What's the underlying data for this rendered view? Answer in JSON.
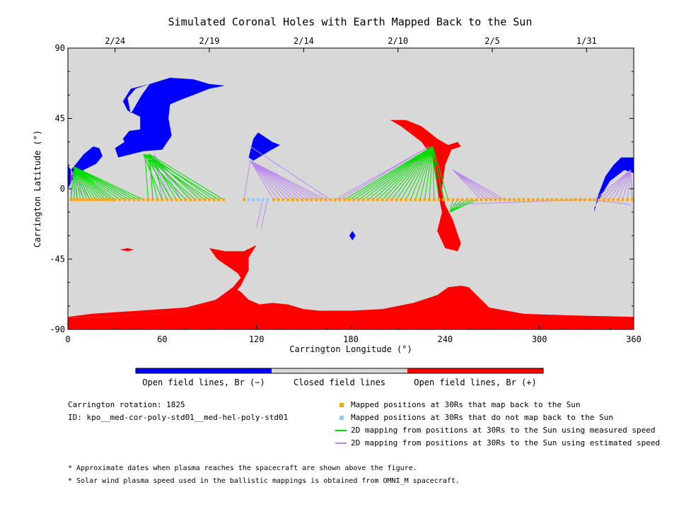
{
  "chart_data": {
    "type": "scatter",
    "title": "Simulated Coronal Holes with Earth Mapped Back to the Sun",
    "xlabel": "Carrington Longitude (°)",
    "ylabel": "Carrington Latitude (°)",
    "xlim": [
      0,
      360
    ],
    "ylim": [
      -90,
      90
    ],
    "xticks": [
      0,
      60,
      120,
      180,
      240,
      300,
      360
    ],
    "yticks": [
      -90,
      -45,
      0,
      45,
      90
    ],
    "top_axis": {
      "labels": [
        "2/24",
        "2/19",
        "2/14",
        "2/10",
        "2/5",
        "1/31"
      ],
      "longitudes": [
        30,
        90,
        150,
        210,
        270,
        330
      ]
    },
    "grid": false,
    "colors": {
      "open_negative": "#0000ff",
      "closed": "#d8d8d8",
      "open_positive": "#ff0000",
      "mapped": "#ffa500",
      "unmapped": "#87cefa",
      "measured": "#00dd00",
      "estimated": "#bb88ee"
    },
    "regions": [
      {
        "polarity": "negative",
        "points": [
          [
            40,
            48
          ],
          [
            47,
            60
          ],
          [
            52,
            67
          ],
          [
            65,
            71
          ],
          [
            80,
            70
          ],
          [
            90,
            67
          ],
          [
            100,
            66
          ],
          [
            90,
            64
          ],
          [
            80,
            60
          ],
          [
            72,
            57
          ],
          [
            65,
            54
          ],
          [
            64,
            45
          ],
          [
            66,
            34
          ],
          [
            60,
            25
          ],
          [
            48,
            24
          ],
          [
            32,
            20
          ],
          [
            30,
            26
          ],
          [
            36,
            30
          ],
          [
            35,
            32
          ],
          [
            39,
            37
          ],
          [
            46,
            38
          ],
          [
            46,
            46
          ],
          [
            38,
            50
          ],
          [
            35,
            56
          ],
          [
            40,
            64
          ],
          [
            52,
            67
          ],
          [
            43,
            64
          ],
          [
            38,
            58
          ]
        ]
      },
      {
        "polarity": "negative",
        "points": [
          [
            2,
            12
          ],
          [
            10,
            22
          ],
          [
            16,
            27
          ],
          [
            20,
            26
          ],
          [
            22,
            21
          ],
          [
            18,
            16
          ],
          [
            10,
            12
          ],
          [
            4,
            8
          ],
          [
            0,
            0
          ],
          [
            0,
            15
          ]
        ]
      },
      {
        "polarity": "negative",
        "points": [
          [
            115,
            20
          ],
          [
            118,
            32
          ],
          [
            121,
            36
          ],
          [
            130,
            30
          ],
          [
            135,
            28
          ],
          [
            128,
            24
          ],
          [
            118,
            18
          ]
        ]
      },
      {
        "polarity": "negative",
        "points": [
          [
            335,
            -15
          ],
          [
            337,
            -5
          ],
          [
            342,
            8
          ],
          [
            347,
            15
          ],
          [
            352,
            20
          ],
          [
            360,
            20
          ],
          [
            360,
            10
          ],
          [
            354,
            12
          ],
          [
            345,
            5
          ],
          [
            340,
            -3
          ],
          [
            335,
            -12
          ]
        ]
      },
      {
        "polarity": "negative",
        "points": [
          [
            179,
            -30
          ],
          [
            181,
            -27
          ],
          [
            183,
            -30
          ],
          [
            181,
            -33
          ]
        ]
      },
      {
        "polarity": "positive",
        "points": [
          [
            205,
            44
          ],
          [
            215,
            44
          ],
          [
            225,
            40
          ],
          [
            235,
            32
          ],
          [
            242,
            28
          ],
          [
            248,
            30
          ],
          [
            250,
            27
          ],
          [
            244,
            25
          ],
          [
            240,
            15
          ],
          [
            238,
            0
          ],
          [
            240,
            -10
          ],
          [
            245,
            -20
          ],
          [
            250,
            -35
          ],
          [
            248,
            -40
          ],
          [
            240,
            -38
          ],
          [
            235,
            -27
          ],
          [
            238,
            -15
          ],
          [
            235,
            0
          ],
          [
            232,
            20
          ],
          [
            225,
            30
          ],
          [
            212,
            40
          ]
        ]
      },
      {
        "polarity": "positive",
        "points": [
          [
            0,
            -90
          ],
          [
            0,
            -82
          ],
          [
            30,
            -82
          ],
          [
            60,
            -80
          ],
          [
            90,
            -74
          ],
          [
            105,
            -68
          ],
          [
            110,
            -62
          ],
          [
            115,
            -52
          ],
          [
            115,
            -44
          ],
          [
            120,
            -36
          ],
          [
            112,
            -40
          ],
          [
            100,
            -40
          ],
          [
            90,
            -38
          ],
          [
            95,
            -45
          ],
          [
            108,
            -54
          ],
          [
            110,
            -57
          ],
          [
            105,
            -63
          ],
          [
            98,
            -70
          ],
          [
            75,
            -76
          ],
          [
            45,
            -78
          ],
          [
            15,
            -80
          ],
          [
            0,
            -82
          ]
        ]
      },
      {
        "polarity": "positive",
        "points": [
          [
            105,
            -63
          ],
          [
            110,
            -66
          ],
          [
            115,
            -71
          ],
          [
            122,
            -74
          ],
          [
            130,
            -73
          ],
          [
            140,
            -74
          ],
          [
            150,
            -77
          ],
          [
            160,
            -78
          ],
          [
            180,
            -78
          ],
          [
            200,
            -77
          ],
          [
            220,
            -73
          ],
          [
            235,
            -68
          ],
          [
            242,
            -63
          ],
          [
            250,
            -62
          ],
          [
            255,
            -63
          ],
          [
            260,
            -68
          ],
          [
            268,
            -76
          ],
          [
            290,
            -80
          ],
          [
            320,
            -81
          ],
          [
            360,
            -82
          ],
          [
            360,
            -90
          ],
          [
            0,
            -90
          ],
          [
            0,
            -82
          ],
          [
            30,
            -82
          ],
          [
            60,
            -80
          ],
          [
            90,
            -74
          ]
        ]
      },
      {
        "polarity": "positive",
        "points": [
          [
            33,
            -39
          ],
          [
            38,
            -38
          ],
          [
            42,
            -39
          ],
          [
            38,
            -40
          ]
        ]
      }
    ],
    "footpoints_30Rs_latitude": -7,
    "mapped_30Rs_lon": [
      2,
      4,
      6,
      8,
      10,
      12,
      14,
      16,
      18,
      20,
      22,
      24,
      26,
      28,
      30,
      33,
      36,
      39,
      42,
      45,
      48,
      51,
      54,
      57,
      60,
      63,
      66,
      69,
      72,
      75,
      78,
      81,
      84,
      87,
      90,
      93,
      96,
      99,
      112,
      131,
      134,
      137,
      140,
      143,
      146,
      149,
      152,
      155,
      158,
      161,
      164,
      167,
      170,
      173,
      176,
      179,
      182,
      185,
      188,
      191,
      194,
      197,
      200,
      203,
      206,
      209,
      212,
      215,
      218,
      221,
      224,
      227,
      230,
      233,
      236,
      239,
      242,
      245,
      248,
      251,
      254,
      257,
      260,
      263,
      266,
      269,
      272,
      275,
      278,
      281,
      284,
      287,
      290,
      293,
      296,
      299,
      302,
      305,
      308,
      311,
      314,
      317,
      320,
      323,
      326,
      329,
      332,
      335,
      338,
      341,
      344,
      347,
      350,
      353,
      356,
      359
    ],
    "unmapped_30Rs_lon": [
      115,
      118,
      121,
      124,
      127
    ],
    "measured_mappings": [
      [
        2,
        12
      ],
      [
        4,
        14
      ],
      [
        6,
        14
      ],
      [
        8,
        14
      ],
      [
        10,
        14
      ],
      [
        12,
        14
      ],
      [
        14,
        14
      ],
      [
        16,
        14
      ],
      [
        18,
        14
      ],
      [
        20,
        14
      ],
      [
        22,
        14
      ],
      [
        24,
        14
      ],
      [
        26,
        14
      ],
      [
        28,
        14
      ],
      [
        30,
        14
      ],
      [
        33,
        14
      ],
      [
        36,
        14
      ],
      [
        39,
        14
      ],
      [
        42,
        14
      ],
      [
        45,
        14
      ],
      [
        48,
        14
      ],
      [
        51,
        22
      ],
      [
        54,
        22
      ],
      [
        57,
        22
      ],
      [
        60,
        22
      ],
      [
        63,
        22
      ],
      [
        66,
        22
      ],
      [
        69,
        22
      ],
      [
        72,
        22
      ],
      [
        75,
        22
      ],
      [
        78,
        22
      ],
      [
        81,
        22
      ],
      [
        84,
        22
      ],
      [
        87,
        22
      ],
      [
        90,
        22
      ],
      [
        93,
        22
      ],
      [
        96,
        22
      ],
      [
        99,
        22
      ],
      [
        176,
        27
      ],
      [
        179,
        27
      ],
      [
        182,
        27
      ],
      [
        185,
        27
      ],
      [
        188,
        27
      ],
      [
        191,
        27
      ],
      [
        194,
        27
      ],
      [
        197,
        27
      ],
      [
        200,
        27
      ],
      [
        203,
        27
      ],
      [
        206,
        27
      ],
      [
        209,
        27
      ],
      [
        212,
        27
      ],
      [
        215,
        27
      ],
      [
        218,
        27
      ],
      [
        221,
        27
      ],
      [
        224,
        27
      ],
      [
        227,
        27
      ],
      [
        230,
        27
      ],
      [
        233,
        27
      ],
      [
        236,
        27
      ],
      [
        239,
        27
      ],
      [
        242,
        27
      ],
      [
        245,
        -15
      ],
      [
        248,
        -15
      ],
      [
        251,
        -15
      ],
      [
        254,
        -15
      ],
      [
        257,
        -15
      ],
      [
        260,
        -15
      ]
    ],
    "estimated_mappings": [
      [
        2,
        12
      ],
      [
        6,
        12
      ],
      [
        10,
        12
      ],
      [
        14,
        12
      ],
      [
        54,
        22
      ],
      [
        60,
        22
      ],
      [
        66,
        22
      ],
      [
        72,
        22
      ],
      [
        78,
        22
      ],
      [
        112,
        18
      ],
      [
        131,
        18
      ],
      [
        134,
        18
      ],
      [
        137,
        18
      ],
      [
        140,
        18
      ],
      [
        143,
        18
      ],
      [
        146,
        18
      ],
      [
        149,
        18
      ],
      [
        152,
        18
      ],
      [
        155,
        18
      ],
      [
        158,
        18
      ],
      [
        161,
        18
      ],
      [
        164,
        18
      ],
      [
        167,
        27
      ],
      [
        170,
        27
      ],
      [
        173,
        27
      ],
      [
        263,
        12
      ],
      [
        266,
        12
      ],
      [
        269,
        12
      ],
      [
        272,
        12
      ],
      [
        275,
        12
      ],
      [
        278,
        12
      ],
      [
        329,
        -10
      ],
      [
        332,
        -10
      ],
      [
        335,
        12
      ],
      [
        338,
        12
      ],
      [
        341,
        12
      ],
      [
        344,
        12
      ],
      [
        347,
        12
      ],
      [
        350,
        12
      ],
      [
        353,
        12
      ],
      [
        356,
        12
      ],
      [
        359,
        12
      ]
    ],
    "estimated_mappings_unmapped": [
      [
        124,
        -25
      ],
      [
        127,
        -25
      ]
    ],
    "colorbar_labels": [
      "Open field lines, Br (−)",
      "Closed field lines",
      "Open field lines, Br (+)"
    ]
  },
  "info": {
    "rotation": "Carrington rotation: 1825",
    "id": "ID: kpo__med-cor-poly-std01__med-hel-poly-std01"
  },
  "legend": [
    {
      "label": "Mapped positions at 30Rs that map back to the Sun",
      "kind": "square",
      "color": "#ffa500"
    },
    {
      "label": "Mapped positions at 30Rs that do not map back to the Sun",
      "kind": "square",
      "color": "#87cefa"
    },
    {
      "label": "2D mapping from positions at 30Rs to the Sun using measured speed",
      "kind": "line",
      "color": "#00dd00"
    },
    {
      "label": "2D mapping from positions at 30Rs to the Sun using estimated speed",
      "kind": "line",
      "color": "#bb88ee"
    }
  ],
  "notes": [
    "* Approximate dates when plasma reaches the spacecraft are shown above the figure.",
    "* Solar wind plasma speed used in the ballistic mappings is obtained from OMNI_M spacecraft."
  ]
}
